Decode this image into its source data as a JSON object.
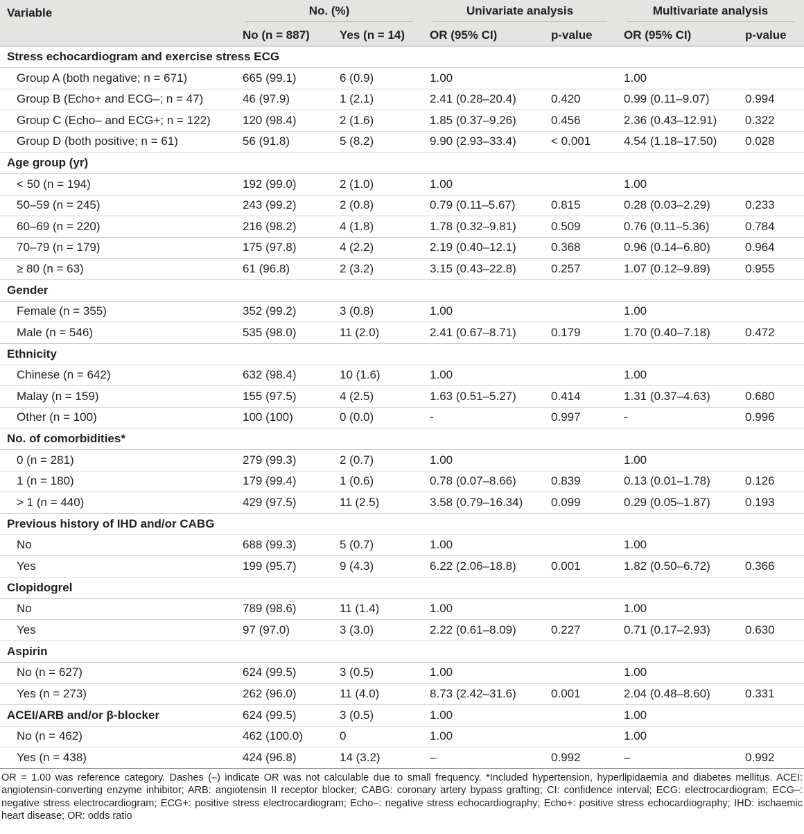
{
  "header": {
    "variable": "Variable",
    "no_pct": "No. (%)",
    "univariate": "Univariate analysis",
    "multivariate": "Multivariate analysis",
    "no_n": "No (n = 887)",
    "yes_n": "Yes (n = 14)",
    "or_ci_uni": "OR (95% CI)",
    "p_uni": "p-value",
    "or_ci_multi": "OR (95% CI)",
    "p_multi": "p-value"
  },
  "rows": [
    {
      "label": "Stress echocardiogram and exercise stress ECG",
      "section": true
    },
    {
      "label": "Group A (both negative; n = 671)",
      "no": "665 (99.1)",
      "yes": "6 (0.9)",
      "uni_or": "1.00",
      "uni_p": "",
      "multi_or": "1.00",
      "multi_p": ""
    },
    {
      "label": "Group B (Echo+ and ECG–; n = 47)",
      "no": "46 (97.9)",
      "yes": "1 (2.1)",
      "uni_or": "2.41 (0.28–20.4)",
      "uni_p": "0.420",
      "multi_or": "0.99 (0.11–9.07)",
      "multi_p": "0.994"
    },
    {
      "label": "Group C (Echo– and ECG+; n = 122)",
      "no": "120 (98.4)",
      "yes": "2 (1.6)",
      "uni_or": "1.85 (0.37–9.26)",
      "uni_p": "0.456",
      "multi_or": "2.36 (0.43–12.91)",
      "multi_p": "0.322"
    },
    {
      "label": "Group D (both positive; n = 61)",
      "no": "56 (91.8)",
      "yes": "5 (8.2)",
      "uni_or": "9.90 (2.93–33.4)",
      "uni_p": "< 0.001",
      "multi_or": "4.54 (1.18–17.50)",
      "multi_p": "0.028"
    },
    {
      "label": "Age group (yr)",
      "section": true
    },
    {
      "label": "< 50 (n = 194)",
      "no": "192 (99.0)",
      "yes": "2 (1.0)",
      "uni_or": "1.00",
      "uni_p": "",
      "multi_or": "1.00",
      "multi_p": ""
    },
    {
      "label": "50–59 (n = 245)",
      "no": "243 (99.2)",
      "yes": "2 (0.8)",
      "uni_or": "0.79 (0.11–5.67)",
      "uni_p": "0.815",
      "multi_or": "0.28 (0.03–2.29)",
      "multi_p": "0.233"
    },
    {
      "label": "60–69 (n = 220)",
      "no": "216 (98.2)",
      "yes": "4 (1.8)",
      "uni_or": "1.78 (0.32–9.81)",
      "uni_p": "0.509",
      "multi_or": "0.76 (0.11–5.36)",
      "multi_p": "0.784"
    },
    {
      "label": "70–79 (n = 179)",
      "no": "175 (97.8)",
      "yes": "4 (2.2)",
      "uni_or": "2.19 (0.40–12.1)",
      "uni_p": "0.368",
      "multi_or": "0.96 (0.14–6.80)",
      "multi_p": "0.964"
    },
    {
      "label": "≥ 80 (n = 63)",
      "no": "61 (96.8)",
      "yes": "2 (3.2)",
      "uni_or": "3.15 (0.43–22.8)",
      "uni_p": "0.257",
      "multi_or": "1.07 (0.12–9.89)",
      "multi_p": "0.955"
    },
    {
      "label": "Gender",
      "section": true
    },
    {
      "label": "Female (n = 355)",
      "no": "352 (99.2)",
      "yes": "3 (0.8)",
      "uni_or": "1.00",
      "uni_p": "",
      "multi_or": "1.00",
      "multi_p": ""
    },
    {
      "label": "Male (n = 546)",
      "no": "535 (98.0)",
      "yes": "11 (2.0)",
      "uni_or": "2.41 (0.67–8.71)",
      "uni_p": "0.179",
      "multi_or": "1.70 (0.40–7.18)",
      "multi_p": "0.472"
    },
    {
      "label": "Ethnicity",
      "section": true
    },
    {
      "label": "Chinese (n = 642)",
      "no": "632 (98.4)",
      "yes": "10 (1.6)",
      "uni_or": "1.00",
      "uni_p": "",
      "multi_or": "1.00",
      "multi_p": ""
    },
    {
      "label": "Malay (n = 159)",
      "no": "155 (97.5)",
      "yes": "4 (2.5)",
      "uni_or": "1.63 (0.51–5.27)",
      "uni_p": "0.414",
      "multi_or": "1.31 (0.37–4.63)",
      "multi_p": "0.680"
    },
    {
      "label": "Other (n = 100)",
      "no": "100 (100)",
      "yes": "0 (0.0)",
      "uni_or": "-",
      "uni_p": "0.997",
      "multi_or": "-",
      "multi_p": "0.996"
    },
    {
      "label": "No. of comorbidities*",
      "section": true
    },
    {
      "label": "0 (n = 281)",
      "no": "279 (99.3)",
      "yes": "2 (0.7)",
      "uni_or": "1.00",
      "uni_p": "",
      "multi_or": "1.00",
      "multi_p": ""
    },
    {
      "label": "1 (n = 180)",
      "no": "179 (99.4)",
      "yes": "1 (0.6)",
      "uni_or": "0.78 (0.07–8.66)",
      "uni_p": "0.839",
      "multi_or": "0.13 (0.01–1.78)",
      "multi_p": "0.126"
    },
    {
      "label": "> 1 (n = 440)",
      "no": "429 (97.5)",
      "yes": "11 (2.5)",
      "uni_or": "3.58 (0.79–16.34)",
      "uni_p": "0.099",
      "multi_or": "0.29 (0.05–1.87)",
      "multi_p": "0.193"
    },
    {
      "label": "Previous history of IHD and/or CABG",
      "section": true
    },
    {
      "label": "No",
      "no": "688 (99.3)",
      "yes": "5 (0.7)",
      "uni_or": "1.00",
      "uni_p": "",
      "multi_or": "1.00",
      "multi_p": ""
    },
    {
      "label": "Yes",
      "no": "199 (95.7)",
      "yes": "9 (4.3)",
      "uni_or": "6.22 (2.06–18.8)",
      "uni_p": "0.001",
      "multi_or": "1.82 (0.50–6.72)",
      "multi_p": "0.366"
    },
    {
      "label": "Clopidogrel",
      "section": true
    },
    {
      "label": "No",
      "no": "789 (98.6)",
      "yes": "11 (1.4)",
      "uni_or": "1.00",
      "uni_p": "",
      "multi_or": "1.00",
      "multi_p": ""
    },
    {
      "label": "Yes",
      "no": "97 (97.0)",
      "yes": "3 (3.0)",
      "uni_or": "2.22 (0.61–8.09)",
      "uni_p": "0.227",
      "multi_or": "0.71 (0.17–2.93)",
      "multi_p": "0.630"
    },
    {
      "label": "Aspirin",
      "section": true
    },
    {
      "label": "No (n = 627)",
      "no": "624 (99.5)",
      "yes": "3 (0.5)",
      "uni_or": "1.00",
      "uni_p": "",
      "multi_or": "1.00",
      "multi_p": ""
    },
    {
      "label": "Yes (n = 273)",
      "no": "262 (96.0)",
      "yes": "11 (4.0)",
      "uni_or": "8.73 (2.42–31.6)",
      "uni_p": "0.001",
      "multi_or": "2.04 (0.48–8.60)",
      "multi_p": "0.331"
    },
    {
      "label": "ACEI/ARB and/or β-blocker",
      "section": true,
      "no": "624 (99.5)",
      "yes": "3 (0.5)",
      "uni_or": "1.00",
      "uni_p": "",
      "multi_or": "1.00",
      "multi_p": ""
    },
    {
      "label": "No (n = 462)",
      "no": "462 (100.0)",
      "yes": "0",
      "uni_or": "1.00",
      "uni_p": "",
      "multi_or": "1.00",
      "multi_p": ""
    },
    {
      "label": "Yes (n = 438)",
      "no": "424 (96.8)",
      "yes": "14 (3.2)",
      "uni_or": "–",
      "uni_p": "0.992",
      "multi_or": "–",
      "multi_p": "0.992"
    }
  ],
  "footnote": "OR = 1.00 was reference category. Dashes (–) indicate OR was not calculable due to small frequency. *Included hypertension, hyperlipidaemia and diabetes mellitus. ACEI: angiotensin-converting enzyme inhibitor; ARB: angiotensin II receptor blocker; CABG: coronary artery bypass grafting; CI: confidence interval; ECG: electrocardiogram; ECG–: negative stress electrocardiogram; ECG+: positive stress electrocardiogram; Echo–: negative stress echocardiography; Echo+: positive stress echocardiography; IHD: ischaemic heart disease; OR: odds ratio"
}
